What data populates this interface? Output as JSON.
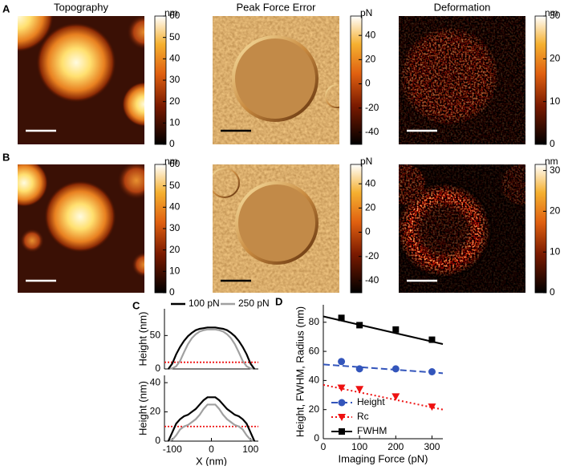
{
  "figure": {
    "rows": [
      {
        "label": "A",
        "panels": [
          {
            "title": "Topography",
            "unit": "nm",
            "clim": [
              0,
              60
            ],
            "ticks": [
              0,
              10,
              20,
              30,
              40,
              50,
              60
            ]
          },
          {
            "title": "Peak Force Error",
            "unit": "pN",
            "clim": [
              -50,
              56
            ],
            "ticks": [
              -40,
              -20,
              0,
              20,
              40
            ]
          },
          {
            "title": "Deformation",
            "unit": "nm",
            "clim": [
              0,
              30
            ],
            "ticks": [
              0,
              10,
              20,
              30
            ]
          }
        ]
      },
      {
        "label": "B",
        "panels": [
          {
            "unit": "nm",
            "clim": [
              0,
              60
            ],
            "ticks": [
              0,
              10,
              20,
              30,
              40,
              50,
              60
            ]
          },
          {
            "unit": "pN",
            "clim": [
              -50,
              56
            ],
            "ticks": [
              -40,
              -20,
              0,
              20,
              40
            ]
          },
          {
            "unit": "nm",
            "clim": [
              0,
              31.5
            ],
            "ticks": [
              0,
              10,
              20,
              30
            ]
          }
        ]
      }
    ]
  },
  "chart_data": [
    {
      "type": "line",
      "label": "C",
      "ylabel": "Height (nm)",
      "x": [
        -110,
        -100,
        -90,
        -80,
        -70,
        -60,
        -50,
        -40,
        -30,
        -20,
        -10,
        0,
        10,
        20,
        30,
        40,
        50,
        60,
        70,
        80,
        90,
        100,
        110
      ],
      "series": [
        {
          "name": "100 pN",
          "color": "#000000",
          "values": [
            0,
            8,
            22,
            33,
            42,
            49,
            54,
            58,
            60,
            61,
            62,
            62,
            62,
            61,
            60,
            58,
            54,
            49,
            42,
            33,
            22,
            8,
            0
          ]
        },
        {
          "name": "250 pN",
          "color": "#a0a0a0",
          "values": [
            0,
            1,
            4,
            12,
            25,
            37,
            46,
            52,
            56,
            58,
            59,
            59,
            59,
            58,
            56,
            52,
            46,
            37,
            25,
            12,
            4,
            1,
            0
          ]
        }
      ],
      "reference_line": 10,
      "reference_color": "#ee1111",
      "xlim": [
        -120,
        120
      ],
      "ylim": [
        0,
        90
      ],
      "yticks": [
        0,
        50
      ]
    },
    {
      "type": "line",
      "xlabel": "X (nm)",
      "ylabel": "Height (nm)",
      "x": [
        -110,
        -100,
        -90,
        -80,
        -70,
        -60,
        -50,
        -40,
        -30,
        -20,
        -10,
        0,
        10,
        20,
        30,
        40,
        50,
        60,
        70,
        80,
        90,
        100,
        110
      ],
      "series": [
        {
          "color": "#000000",
          "values": [
            0,
            6,
            12,
            15,
            17,
            18,
            20,
            22,
            25,
            28,
            30,
            30,
            30,
            28,
            25,
            22,
            20,
            18,
            17,
            15,
            12,
            6,
            0
          ]
        },
        {
          "color": "#a0a0a0",
          "values": [
            0,
            1,
            4,
            8,
            10,
            11,
            13,
            15,
            18,
            22,
            25,
            25,
            25,
            22,
            18,
            15,
            13,
            11,
            10,
            8,
            4,
            1,
            0
          ]
        }
      ],
      "reference_line": 10,
      "reference_color": "#ee1111",
      "xlim": [
        -120,
        120
      ],
      "xticks": [
        -100,
        0,
        100
      ],
      "ylim": [
        0,
        45
      ],
      "yticks": [
        0,
        20,
        40
      ]
    },
    {
      "type": "scatter",
      "label": "D",
      "xlabel": "Imaging Force (pN)",
      "ylabel": "Height, FWHM, Radius (nm)",
      "x": [
        50,
        100,
        200,
        300
      ],
      "series": [
        {
          "name": "Height",
          "color": "#3355bb",
          "marker": "circle",
          "values": [
            53,
            48,
            48,
            46
          ],
          "fit": {
            "x": [
              0,
              330
            ],
            "values": [
              51,
              45
            ]
          },
          "dash": "8,4"
        },
        {
          "name": "Rc",
          "color": "#ee1111",
          "marker": "triangle",
          "values": [
            35,
            34,
            29,
            22
          ],
          "fit": {
            "x": [
              0,
              330
            ],
            "values": [
              37,
              20
            ]
          },
          "dash": "2,3"
        },
        {
          "name": "FWHM",
          "color": "#000000",
          "marker": "square",
          "values": [
            83,
            78,
            75,
            68
          ],
          "fit": {
            "x": [
              0,
              330
            ],
            "values": [
              84,
              65
            ]
          },
          "dash": "none"
        }
      ],
      "xlim": [
        0,
        330
      ],
      "xticks": [
        0,
        100,
        200,
        300
      ],
      "ylim": [
        0,
        92
      ],
      "yticks": [
        0,
        20,
        40,
        60,
        80
      ]
    }
  ]
}
